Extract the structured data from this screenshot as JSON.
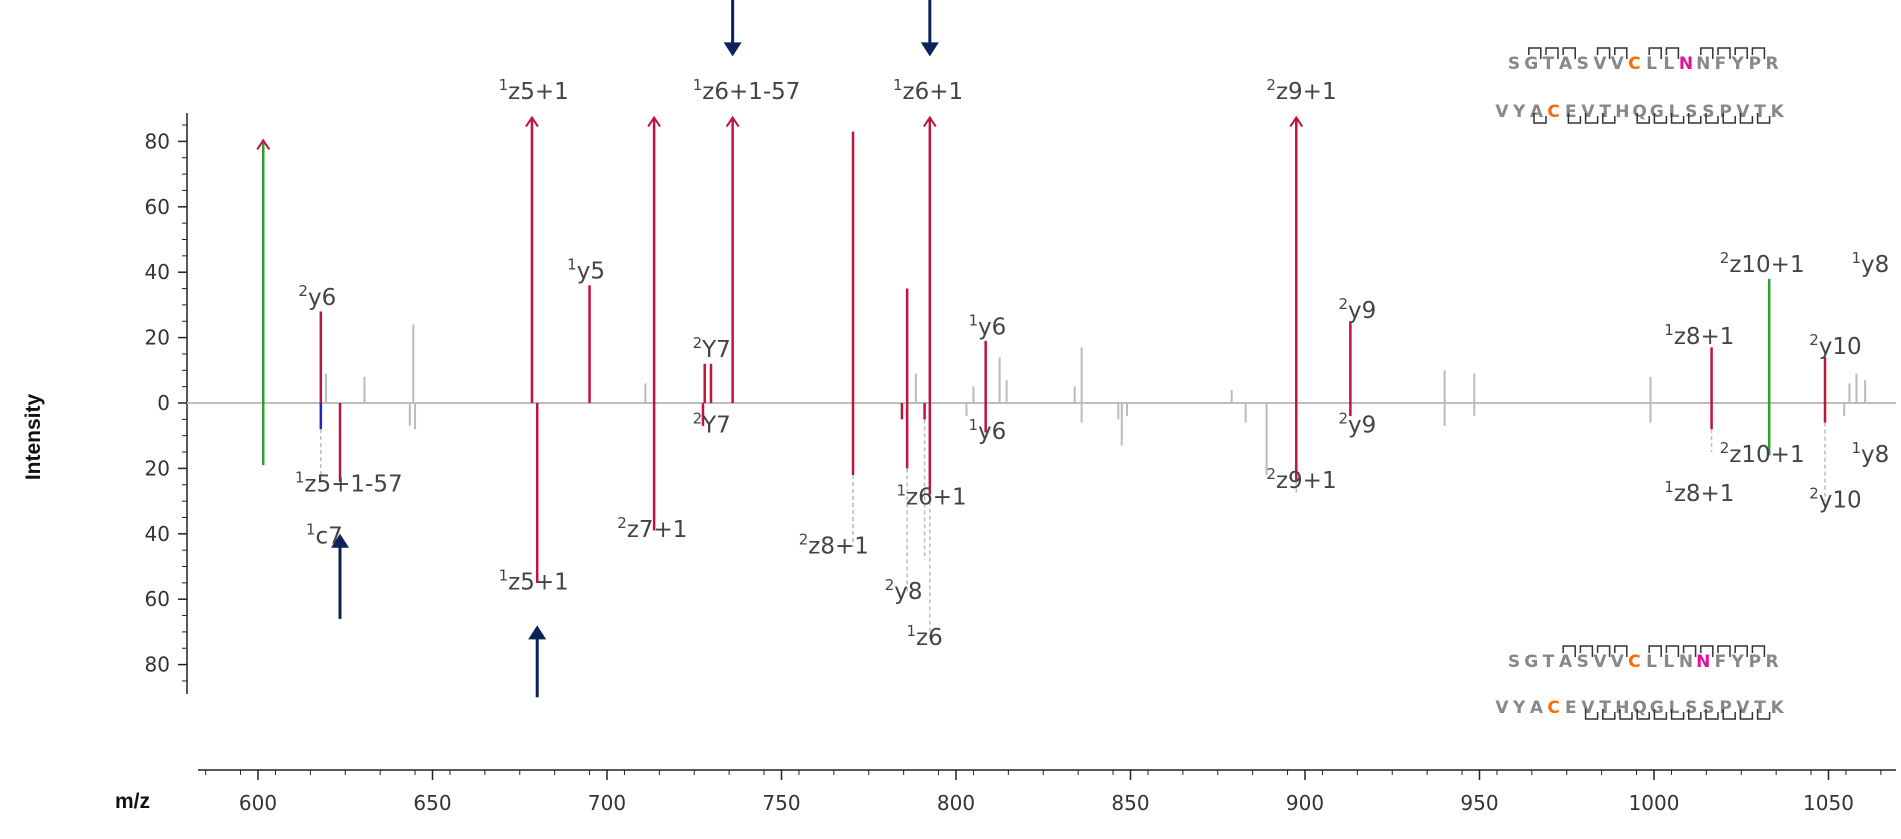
{
  "chart_data": {
    "type": "bar",
    "title": "",
    "xlabel": "m/z",
    "ylabel": "Intensity",
    "xlim": [
      580,
      1065
    ],
    "ylim": [
      -90,
      90
    ],
    "x_ticks": [
      "600",
      "650",
      "700",
      "750",
      "800",
      "850",
      "900",
      "950",
      "1000",
      "1050"
    ],
    "y_ticks": [
      "80",
      "60",
      "40",
      "20",
      "0",
      "20",
      "40",
      "60",
      "80"
    ],
    "grid": false,
    "legend": "none",
    "colors": {
      "matched": "#c0143c",
      "precursor": "#2ca02c",
      "unmatched": "#bbbbbb",
      "minor": "#2222cc",
      "arrow": "#0d2257",
      "cys": "#ff6a00",
      "asn": "#e0119c",
      "residue": "#888888"
    },
    "series": [
      {
        "name": "top",
        "peaks": [
          {
            "mz": 601.5,
            "intensity": 80,
            "color": "precursor",
            "clip": true
          },
          {
            "mz": 618,
            "intensity": 28,
            "color": "matched"
          },
          {
            "mz": 619.5,
            "intensity": 9,
            "color": "unmatched"
          },
          {
            "mz": 630.5,
            "intensity": 8,
            "color": "unmatched"
          },
          {
            "mz": 644.5,
            "intensity": 24,
            "color": "unmatched"
          },
          {
            "mz": 678.5,
            "intensity": 87,
            "color": "matched",
            "clip": true
          },
          {
            "mz": 695,
            "intensity": 36,
            "color": "matched"
          },
          {
            "mz": 711,
            "intensity": 6,
            "color": "unmatched"
          },
          {
            "mz": 713.5,
            "intensity": 87,
            "color": "matched",
            "clip": true
          },
          {
            "mz": 728,
            "intensity": 12,
            "color": "matched"
          },
          {
            "mz": 729.8,
            "intensity": 12,
            "color": "matched"
          },
          {
            "mz": 736,
            "intensity": 87,
            "color": "matched",
            "clip": true
          },
          {
            "mz": 770.5,
            "intensity": 83,
            "color": "matched"
          },
          {
            "mz": 786,
            "intensity": 35,
            "color": "matched"
          },
          {
            "mz": 788.5,
            "intensity": 9,
            "color": "unmatched"
          },
          {
            "mz": 792.5,
            "intensity": 87,
            "color": "matched",
            "clip": true
          },
          {
            "mz": 805,
            "intensity": 5,
            "color": "unmatched"
          },
          {
            "mz": 808.5,
            "intensity": 19,
            "color": "matched"
          },
          {
            "mz": 812.5,
            "intensity": 14,
            "color": "unmatched"
          },
          {
            "mz": 814.5,
            "intensity": 7,
            "color": "unmatched"
          },
          {
            "mz": 834,
            "intensity": 5,
            "color": "unmatched"
          },
          {
            "mz": 836,
            "intensity": 17,
            "color": "unmatched"
          },
          {
            "mz": 879,
            "intensity": 4,
            "color": "unmatched"
          },
          {
            "mz": 897.5,
            "intensity": 87,
            "color": "matched",
            "clip": true
          },
          {
            "mz": 913,
            "intensity": 25,
            "color": "matched"
          },
          {
            "mz": 940,
            "intensity": 10,
            "color": "unmatched"
          },
          {
            "mz": 948.5,
            "intensity": 9,
            "color": "unmatched"
          },
          {
            "mz": 999,
            "intensity": 8,
            "color": "unmatched"
          },
          {
            "mz": 1016.5,
            "intensity": 17,
            "color": "matched"
          },
          {
            "mz": 1033,
            "intensity": 38,
            "color": "precursor"
          },
          {
            "mz": 1049,
            "intensity": 14,
            "color": "matched"
          },
          {
            "mz": 1056,
            "intensity": 6,
            "color": "unmatched"
          },
          {
            "mz": 1058,
            "intensity": 9,
            "color": "unmatched"
          },
          {
            "mz": 1060.5,
            "intensity": 7,
            "color": "unmatched"
          }
        ]
      },
      {
        "name": "bottom",
        "peaks": [
          {
            "mz": 601.5,
            "intensity": 19,
            "color": "precursor"
          },
          {
            "mz": 618,
            "intensity": 8,
            "color": "minor"
          },
          {
            "mz": 623.5,
            "intensity": 24,
            "color": "matched"
          },
          {
            "mz": 643.5,
            "intensity": 7,
            "color": "unmatched"
          },
          {
            "mz": 645,
            "intensity": 8,
            "color": "unmatched"
          },
          {
            "mz": 680,
            "intensity": 55,
            "color": "matched"
          },
          {
            "mz": 713.5,
            "intensity": 39,
            "color": "matched"
          },
          {
            "mz": 727.5,
            "intensity": 7,
            "color": "matched"
          },
          {
            "mz": 770.5,
            "intensity": 22,
            "color": "matched"
          },
          {
            "mz": 784.5,
            "intensity": 5,
            "color": "matched"
          },
          {
            "mz": 786,
            "intensity": 20,
            "color": "matched"
          },
          {
            "mz": 791,
            "intensity": 5,
            "color": "matched"
          },
          {
            "mz": 792.5,
            "intensity": 28,
            "color": "matched"
          },
          {
            "mz": 803,
            "intensity": 4,
            "color": "unmatched"
          },
          {
            "mz": 808.5,
            "intensity": 9,
            "color": "matched"
          },
          {
            "mz": 836,
            "intensity": 6,
            "color": "unmatched"
          },
          {
            "mz": 846.5,
            "intensity": 5,
            "color": "unmatched"
          },
          {
            "mz": 847.5,
            "intensity": 13,
            "color": "unmatched"
          },
          {
            "mz": 849,
            "intensity": 4,
            "color": "unmatched"
          },
          {
            "mz": 883,
            "intensity": 6,
            "color": "unmatched"
          },
          {
            "mz": 889,
            "intensity": 22,
            "color": "unmatched"
          },
          {
            "mz": 897.5,
            "intensity": 24,
            "color": "matched"
          },
          {
            "mz": 913,
            "intensity": 4,
            "color": "matched"
          },
          {
            "mz": 940,
            "intensity": 7,
            "color": "unmatched"
          },
          {
            "mz": 948.5,
            "intensity": 4,
            "color": "unmatched"
          },
          {
            "mz": 999,
            "intensity": 6,
            "color": "unmatched"
          },
          {
            "mz": 1016.5,
            "intensity": 8,
            "color": "matched"
          },
          {
            "mz": 1033,
            "intensity": 16,
            "color": "precursor"
          },
          {
            "mz": 1049,
            "intensity": 6,
            "color": "matched"
          },
          {
            "mz": 1054.5,
            "intensity": 4,
            "color": "unmatched"
          }
        ]
      }
    ],
    "connectors": [
      {
        "mz": 618,
        "from": -8,
        "to": -25
      },
      {
        "mz": 770.5,
        "from": -22,
        "to": -44
      },
      {
        "mz": 786,
        "from": -20,
        "to": -58
      },
      {
        "mz": 791,
        "from": -5,
        "to": -48
      },
      {
        "mz": 792.5,
        "from": -28,
        "to": -72
      },
      {
        "mz": 897.5,
        "from": -24,
        "to": -28
      },
      {
        "mz": 1016.5,
        "from": -8,
        "to": -15
      },
      {
        "mz": 1049,
        "from": -6,
        "to": -30
      }
    ],
    "arrows": [
      {
        "mz": 736,
        "from": 126,
        "to": 106
      },
      {
        "mz": 792.5,
        "from": 126,
        "to": 106
      },
      {
        "mz": 623.5,
        "from": -66,
        "to": -40
      },
      {
        "mz": 680,
        "from": -90,
        "to": -68
      }
    ],
    "annotations": [
      {
        "sup": "1",
        "main": "z5+1",
        "mz": 679,
        "intensity": 93
      },
      {
        "sup": "1",
        "main": "z6+1-57",
        "mz": 740,
        "intensity": 93
      },
      {
        "sup": "1",
        "main": "z6+1",
        "mz": 792,
        "intensity": 93
      },
      {
        "sup": "2",
        "main": "z9+1",
        "mz": 899,
        "intensity": 93
      },
      {
        "sup": "2",
        "main": "y6",
        "mz": 617,
        "intensity": 30
      },
      {
        "sup": "1",
        "main": "y5",
        "mz": 694,
        "intensity": 38
      },
      {
        "sup": "2",
        "main": "Y7",
        "mz": 730,
        "intensity": 14
      },
      {
        "sup": "1",
        "main": "y6",
        "mz": 809,
        "intensity": 21
      },
      {
        "sup": "2",
        "main": "y9",
        "mz": 915,
        "intensity": 26
      },
      {
        "sup": "1",
        "main": "z8+1",
        "mz": 1013,
        "intensity": 18
      },
      {
        "sup": "2",
        "main": "z10+1",
        "mz": 1031,
        "intensity": 40
      },
      {
        "sup": "1",
        "main": "y8",
        "mz": 1062,
        "intensity": 40
      },
      {
        "sup": "2",
        "main": "y10",
        "mz": 1052,
        "intensity": 15
      },
      {
        "sup": "1",
        "main": "z5+1-57",
        "mz": 626,
        "intensity": -27
      },
      {
        "sup": "1",
        "main": "c7",
        "mz": 619,
        "intensity": -43
      },
      {
        "sup": "1",
        "main": "z5+1",
        "mz": 679,
        "intensity": -57
      },
      {
        "sup": "2",
        "main": "z7+1",
        "mz": 713,
        "intensity": -41
      },
      {
        "sup": "2",
        "main": "Y7",
        "mz": 730,
        "intensity": -9
      },
      {
        "sup": "2",
        "main": "z8+1",
        "mz": 765,
        "intensity": -46
      },
      {
        "sup": "2",
        "main": "y8",
        "mz": 785,
        "intensity": -60
      },
      {
        "sup": "1",
        "main": "z6+1",
        "mz": 793,
        "intensity": -31
      },
      {
        "sup": "1",
        "main": "z6",
        "mz": 791,
        "intensity": -74
      },
      {
        "sup": "1",
        "main": "y6",
        "mz": 809,
        "intensity": -11
      },
      {
        "sup": "2",
        "main": "z9+1",
        "mz": 899,
        "intensity": -26
      },
      {
        "sup": "2",
        "main": "y9",
        "mz": 915,
        "intensity": -9
      },
      {
        "sup": "2",
        "main": "z10+1",
        "mz": 1031,
        "intensity": -18
      },
      {
        "sup": "1",
        "main": "y8",
        "mz": 1062,
        "intensity": -18
      },
      {
        "sup": "1",
        "main": "z8+1",
        "mz": 1013,
        "intensity": -30
      },
      {
        "sup": "2",
        "main": "y10",
        "mz": 1052,
        "intensity": -32
      }
    ],
    "sequence_panels": [
      {
        "name": "top",
        "chains": [
          {
            "residues": [
              "S",
              "G",
              "T",
              "A",
              "S",
              "V",
              "V",
              "C",
              "L",
              "L",
              "N",
              "N",
              "F",
              "Y",
              "P",
              "R"
            ],
            "highlight": {
              "7": "cys",
              "10": "asn"
            },
            "top_brackets": [
              1,
              2,
              3,
              5,
              6,
              8,
              9,
              11,
              12,
              13,
              14
            ],
            "bottom_brackets": []
          },
          {
            "residues": [
              "V",
              "Y",
              "A",
              "C",
              "E",
              "V",
              "T",
              "H",
              "Q",
              "G",
              "L",
              "S",
              "S",
              "P",
              "V",
              "T",
              "K"
            ],
            "highlight": {
              "3": "cys"
            },
            "top_brackets": [],
            "bottom_brackets": [
              2,
              4,
              5,
              6,
              8,
              9,
              10,
              11,
              12,
              13,
              14,
              15
            ]
          }
        ]
      },
      {
        "name": "bottom",
        "chains": [
          {
            "residues": [
              "S",
              "G",
              "T",
              "A",
              "S",
              "V",
              "V",
              "C",
              "L",
              "L",
              "N",
              "N",
              "F",
              "Y",
              "P",
              "R"
            ],
            "highlight": {
              "7": "cys",
              "11": "asn"
            },
            "top_brackets": [
              3,
              4,
              5,
              6,
              8,
              9,
              10,
              11,
              12,
              13,
              14
            ],
            "bottom_brackets": []
          },
          {
            "residues": [
              "V",
              "Y",
              "A",
              "C",
              "E",
              "V",
              "T",
              "H",
              "Q",
              "G",
              "L",
              "S",
              "S",
              "P",
              "V",
              "T",
              "K"
            ],
            "highlight": {
              "3": "cys"
            },
            "top_brackets": [],
            "bottom_brackets": [
              5,
              6,
              7,
              8,
              9,
              10,
              11,
              12,
              13,
              14,
              15
            ]
          }
        ]
      }
    ]
  }
}
